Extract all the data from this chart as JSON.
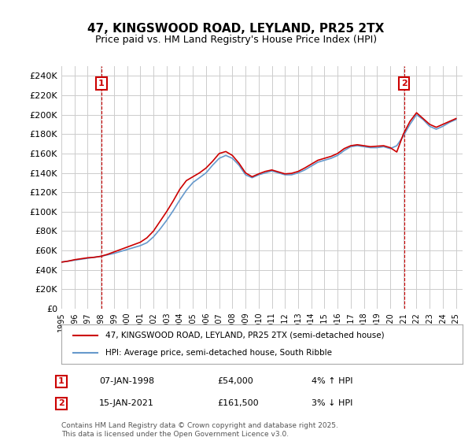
{
  "title": "47, KINGSWOOD ROAD, LEYLAND, PR25 2TX",
  "subtitle": "Price paid vs. HM Land Registry's House Price Index (HPI)",
  "ylabel_ticks": [
    "£0",
    "£20K",
    "£40K",
    "£60K",
    "£80K",
    "£100K",
    "£120K",
    "£140K",
    "£160K",
    "£180K",
    "£200K",
    "£220K",
    "£240K"
  ],
  "ytick_values": [
    0,
    20000,
    40000,
    60000,
    80000,
    100000,
    120000,
    140000,
    160000,
    180000,
    200000,
    220000,
    240000
  ],
  "ylim": [
    0,
    250000
  ],
  "sale1": {
    "date": "07-JAN-1998",
    "price": "54,000",
    "label": "1",
    "hpi_pct": "4% ↑ HPI"
  },
  "sale2": {
    "date": "15-JAN-2021",
    "price": "161,500",
    "label": "2",
    "hpi_pct": "3% ↓ HPI"
  },
  "legend_line1": "47, KINGSWOOD ROAD, LEYLAND, PR25 2TX (semi-detached house)",
  "legend_line2": "HPI: Average price, semi-detached house, South Ribble",
  "footer": "Contains HM Land Registry data © Crown copyright and database right 2025.\nThis data is licensed under the Open Government Licence v3.0.",
  "line_color_price": "#cc0000",
  "line_color_hpi": "#6699cc",
  "grid_color": "#cccccc",
  "bg_color": "#ffffff",
  "plot_bg_color": "#ffffff",
  "annotation_box_color": "#cc0000",
  "sale1_x": 1998.05,
  "sale2_x": 2021.05,
  "hpi_data_x": [
    1995.0,
    1995.5,
    1996.0,
    1996.5,
    1997.0,
    1997.5,
    1998.0,
    1998.5,
    1999.0,
    1999.5,
    2000.0,
    2000.5,
    2001.0,
    2001.5,
    2002.0,
    2002.5,
    2003.0,
    2003.5,
    2004.0,
    2004.5,
    2005.0,
    2005.5,
    2006.0,
    2006.5,
    2007.0,
    2007.5,
    2008.0,
    2008.5,
    2009.0,
    2009.5,
    2010.0,
    2010.5,
    2011.0,
    2011.5,
    2012.0,
    2012.5,
    2013.0,
    2013.5,
    2014.0,
    2014.5,
    2015.0,
    2015.5,
    2016.0,
    2016.5,
    2017.0,
    2017.5,
    2018.0,
    2018.5,
    2019.0,
    2019.5,
    2020.0,
    2020.5,
    2021.0,
    2021.5,
    2022.0,
    2022.5,
    2023.0,
    2023.5,
    2024.0,
    2024.5,
    2025.0
  ],
  "hpi_data_y": [
    48000,
    49000,
    50000,
    51000,
    52000,
    53000,
    54000,
    55500,
    57000,
    59000,
    61000,
    63000,
    65000,
    68000,
    74000,
    82000,
    91000,
    101000,
    112000,
    122000,
    130000,
    135000,
    140000,
    148000,
    155000,
    158000,
    155000,
    148000,
    138000,
    135000,
    138000,
    140000,
    142000,
    140000,
    138000,
    138000,
    140000,
    143000,
    147000,
    151000,
    153000,
    155000,
    158000,
    163000,
    167000,
    168000,
    167000,
    166000,
    166000,
    167000,
    165000,
    168000,
    178000,
    190000,
    200000,
    195000,
    188000,
    185000,
    188000,
    192000,
    195000
  ],
  "price_data_x": [
    1995.0,
    1995.5,
    1996.0,
    1996.5,
    1997.0,
    1997.5,
    1998.0,
    1998.5,
    1999.0,
    1999.5,
    2000.0,
    2000.5,
    2001.0,
    2001.5,
    2002.0,
    2002.5,
    2003.0,
    2003.5,
    2004.0,
    2004.5,
    2005.0,
    2005.5,
    2006.0,
    2006.5,
    2007.0,
    2007.5,
    2008.0,
    2008.5,
    2009.0,
    2009.5,
    2010.0,
    2010.5,
    2011.0,
    2011.5,
    2012.0,
    2012.5,
    2013.0,
    2013.5,
    2014.0,
    2014.5,
    2015.0,
    2015.5,
    2016.0,
    2016.5,
    2017.0,
    2017.5,
    2018.0,
    2018.5,
    2019.0,
    2019.5,
    2020.0,
    2020.5,
    2021.0,
    2021.5,
    2022.0,
    2022.5,
    2023.0,
    2023.5,
    2024.0,
    2024.5,
    2025.0
  ],
  "price_data_y": [
    48000,
    49000,
    50500,
    51500,
    52500,
    53000,
    54000,
    56000,
    58500,
    61000,
    63500,
    66000,
    68500,
    73000,
    80000,
    90000,
    100000,
    111000,
    123000,
    132000,
    136000,
    140000,
    145000,
    152000,
    160000,
    162000,
    158000,
    150000,
    140000,
    136000,
    139000,
    141500,
    143000,
    141000,
    139000,
    139500,
    141500,
    145000,
    149000,
    153000,
    155000,
    157000,
    160000,
    165000,
    168000,
    169000,
    168000,
    167000,
    167500,
    168000,
    166000,
    161500,
    180000,
    193000,
    202000,
    196000,
    190000,
    187000,
    190000,
    193000,
    196000
  ]
}
